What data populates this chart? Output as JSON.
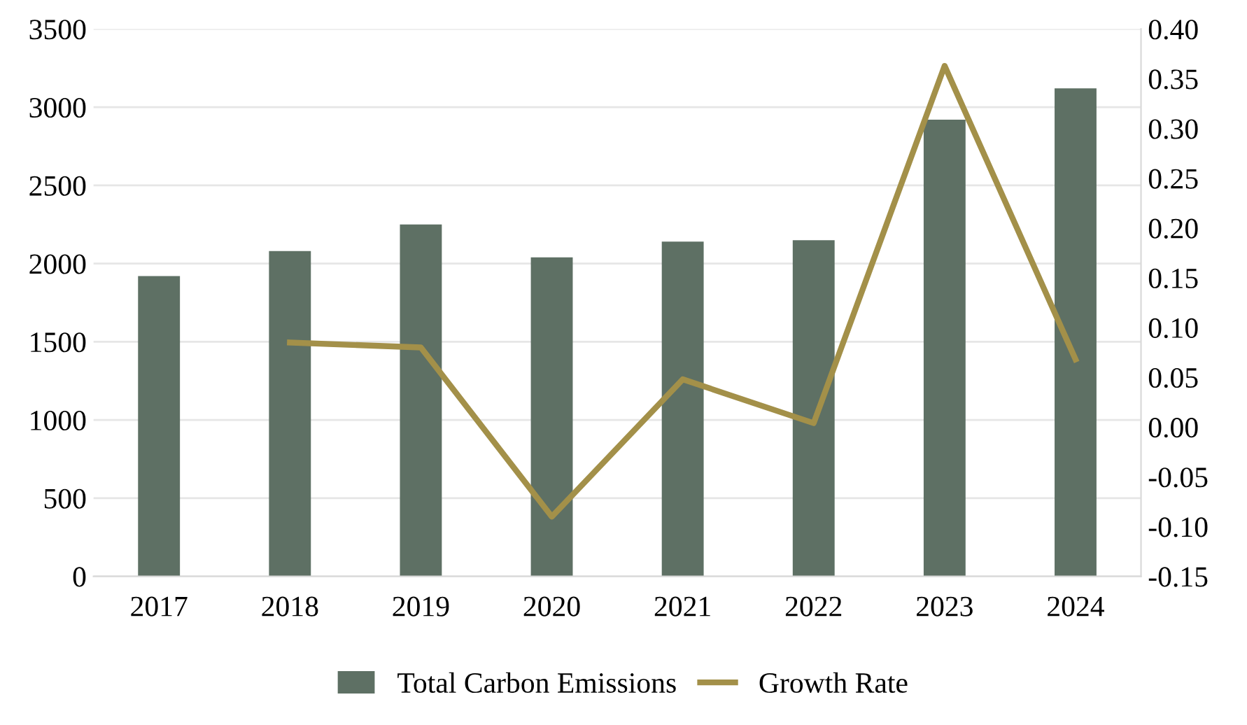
{
  "chart_data": {
    "type": "bar",
    "categories": [
      "2017",
      "2018",
      "2019",
      "2020",
      "2021",
      "2022",
      "2023",
      "2024"
    ],
    "series": [
      {
        "name": "Total Carbon Emissions",
        "color": "#5e7064",
        "values": [
          1920,
          2080,
          2250,
          2040,
          2140,
          2150,
          2920,
          3120
        ]
      },
      {
        "name": "Growth Rate",
        "type": "line",
        "axis": "y2",
        "color": "#a39049",
        "values": [
          null,
          0.085,
          0.08,
          -0.09,
          0.048,
          0.004,
          0.363,
          0.068
        ]
      }
    ],
    "ylim": [
      0,
      3500
    ],
    "yticks": [
      0,
      500,
      1000,
      1500,
      2000,
      2500,
      3000,
      3500
    ],
    "y2lim": [
      -0.15,
      0.4
    ],
    "y2ticks": [
      {
        "value": -0.15,
        "label": "-0.15"
      },
      {
        "value": -0.1,
        "label": "-0.10"
      },
      {
        "value": -0.05,
        "label": "-0.05"
      },
      {
        "value": 0,
        "label": "0.00"
      },
      {
        "value": 0.05,
        "label": "0.05"
      },
      {
        "value": 0.1,
        "label": "0.10"
      },
      {
        "value": 0.15,
        "label": "0.15"
      },
      {
        "value": 0.2,
        "label": "0.20"
      },
      {
        "value": 0.25,
        "label": "0.25"
      },
      {
        "value": 0.3,
        "label": "0.30"
      },
      {
        "value": 0.35,
        "label": "0.35"
      },
      {
        "value": 0.4,
        "label": "0.40"
      }
    ],
    "grid": "y",
    "legend": "bottom",
    "marker": "none",
    "line_style": "solid"
  }
}
